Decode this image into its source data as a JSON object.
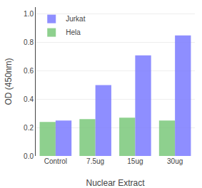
{
  "chart_data": {
    "type": "bar",
    "categories": [
      "Control",
      "7.5ug",
      "15ug",
      "30ug"
    ],
    "series": [
      {
        "name": "Hela",
        "color": "#7BC87B",
        "values": [
          0.24,
          0.26,
          0.27,
          0.25
        ]
      },
      {
        "name": "Jurkat",
        "color": "#7B7BFF",
        "values": [
          0.25,
          0.5,
          0.71,
          0.85
        ]
      }
    ],
    "xlabel": "Nuclear Extract",
    "ylabel": "OD (450nm)",
    "ylim": [
      0.0,
      1.05
    ],
    "yticks": [
      {
        "value": 0,
        "label": "0.0"
      },
      0.2,
      0.4,
      0.6,
      0.8,
      {
        "value": 1,
        "label": "1.0"
      }
    ],
    "grid": true,
    "legend": "upper left"
  }
}
